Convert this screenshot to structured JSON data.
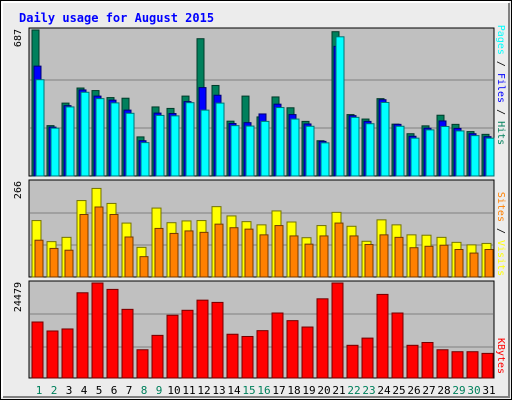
{
  "title": "Daily usage for August 2015",
  "colors": {
    "hits": "#00805c",
    "files": "#0000ff",
    "pages": "#00ffff",
    "visits": "#ffff00",
    "sites": "#ff8000",
    "kbytes": "#ff0000",
    "title": "#0000ff",
    "weekend_day": "#00805c",
    "weekday": "#000000"
  },
  "chart_data": [
    {
      "type": "bar",
      "title": "Daily usage for August 2015",
      "categories": [
        "1",
        "2",
        "3",
        "4",
        "5",
        "6",
        "7",
        "8",
        "9",
        "10",
        "11",
        "12",
        "13",
        "14",
        "15",
        "16",
        "17",
        "18",
        "19",
        "20",
        "21",
        "22",
        "23",
        "24",
        "25",
        "26",
        "27",
        "28",
        "29",
        "30",
        "31"
      ],
      "weekend_days": [
        "1",
        "2",
        "8",
        "9",
        "15",
        "16",
        "22",
        "23",
        "29",
        "30"
      ],
      "ymax_label": "687",
      "ylim": [
        0,
        687
      ],
      "series": [
        {
          "name": "Hits",
          "values": [
            687,
            237,
            343,
            414,
            402,
            369,
            366,
            184,
            325,
            318,
            376,
            646,
            426,
            258,
            376,
            278,
            372,
            321,
            257,
            166,
            679,
            289,
            268,
            364,
            244,
            199,
            236,
            286,
            243,
            209,
            196
          ]
        },
        {
          "name": "Files",
          "values": [
            517,
            230,
            331,
            405,
            376,
            357,
            310,
            166,
            296,
            294,
            350,
            416,
            380,
            247,
            251,
            292,
            338,
            289,
            245,
            163,
            610,
            284,
            257,
            359,
            243,
            187,
            225,
            259,
            224,
            199,
            185
          ]
        },
        {
          "name": "Pages",
          "values": [
            453,
            225,
            325,
            394,
            364,
            344,
            295,
            157,
            285,
            283,
            345,
            310,
            343,
            237,
            235,
            257,
            322,
            268,
            234,
            156,
            655,
            276,
            246,
            346,
            234,
            178,
            217,
            233,
            212,
            190,
            178
          ]
        }
      ],
      "legend": [
        "Pages",
        "Files",
        "Hits"
      ]
    },
    {
      "type": "bar",
      "categories": [
        "1",
        "2",
        "3",
        "4",
        "5",
        "6",
        "7",
        "8",
        "9",
        "10",
        "11",
        "12",
        "13",
        "14",
        "15",
        "16",
        "17",
        "18",
        "19",
        "20",
        "21",
        "22",
        "23",
        "24",
        "25",
        "26",
        "27",
        "28",
        "29",
        "30",
        "31"
      ],
      "ymax_label": "266",
      "ylim": [
        0,
        266
      ],
      "series": [
        {
          "name": "Visits",
          "values": [
            158,
            99,
            111,
            214,
            248,
            206,
            151,
            83,
            193,
            152,
            157,
            158,
            197,
            171,
            155,
            146,
            185,
            154,
            110,
            144,
            181,
            142,
            100,
            160,
            146,
            118,
            117,
            111,
            97,
            90,
            94
          ]
        },
        {
          "name": "Sites",
          "values": [
            103,
            80,
            75,
            175,
            196,
            175,
            112,
            57,
            136,
            122,
            129,
            125,
            148,
            138,
            134,
            118,
            144,
            115,
            92,
            115,
            151,
            115,
            91,
            118,
            111,
            82,
            86,
            89,
            77,
            67,
            77
          ]
        }
      ],
      "legend": [
        "Sites",
        "Visits"
      ]
    },
    {
      "type": "bar",
      "categories": [
        "1",
        "2",
        "3",
        "4",
        "5",
        "6",
        "7",
        "8",
        "9",
        "10",
        "11",
        "12",
        "13",
        "14",
        "15",
        "16",
        "17",
        "18",
        "19",
        "20",
        "21",
        "22",
        "23",
        "24",
        "25",
        "26",
        "27",
        "28",
        "29",
        "30",
        "31"
      ],
      "ymax_label": "24479",
      "ylim": [
        0,
        24479
      ],
      "series": [
        {
          "name": "KBytes",
          "values": [
            14430,
            12117,
            12637,
            21964,
            24479,
            22831,
            17690,
            7279,
            10987,
            16170,
            17446,
            20059,
            19480,
            11275,
            10699,
            12203,
            16749,
            14780,
            13135,
            20406,
            24479,
            8425,
            10280,
            21542,
            16749,
            8425,
            9149,
            7279,
            6776,
            6776,
            6343
          ]
        }
      ],
      "legend": [
        "KBytes"
      ]
    }
  ]
}
